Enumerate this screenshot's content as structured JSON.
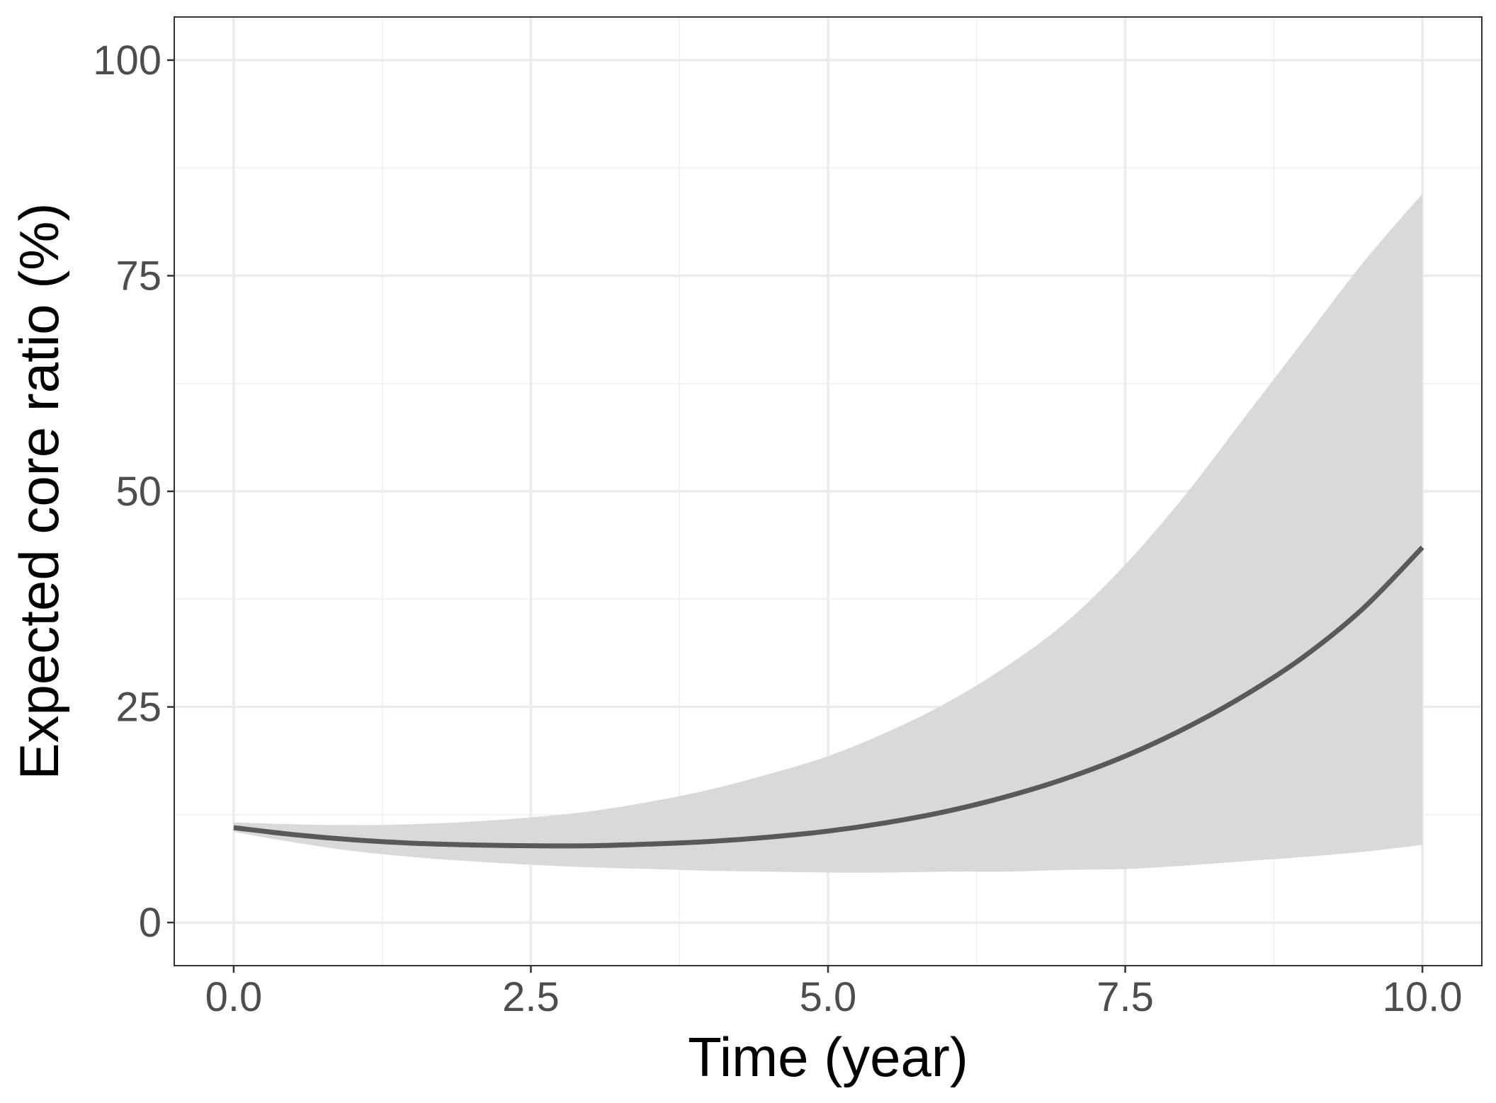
{
  "chart_data": {
    "type": "line",
    "title": "",
    "xlabel": "Time (year)",
    "ylabel": "Expected core ratio (%)",
    "xlim": [
      -0.5,
      10.5
    ],
    "ylim": [
      -5,
      105
    ],
    "x_ticks": [
      0,
      2.5,
      5,
      7.5,
      10
    ],
    "x_tick_labels": [
      "0.0",
      "2.5",
      "5.0",
      "7.5",
      "10.0"
    ],
    "y_ticks": [
      0,
      25,
      50,
      75,
      100
    ],
    "y_tick_labels": [
      "0",
      "25",
      "50",
      "75",
      "100"
    ],
    "x_minor_ticks": [
      1.25,
      3.75,
      6.25,
      8.75
    ],
    "y_minor_ticks": [
      12.5,
      37.5,
      62.5,
      87.5
    ],
    "grid": true,
    "legend": "none",
    "series": [
      {
        "x": [
          0,
          0.5,
          1,
          1.5,
          2,
          2.5,
          3,
          3.5,
          4,
          4.5,
          5,
          5.5,
          6,
          6.5,
          7,
          7.5,
          8,
          8.5,
          9,
          9.5,
          10
        ],
        "values": [
          11,
          10.2,
          9.6,
          9.2,
          9.0,
          8.9,
          8.9,
          9.1,
          9.4,
          9.9,
          10.6,
          11.6,
          12.9,
          14.6,
          16.7,
          19.3,
          22.5,
          26.3,
          30.8,
          36.4,
          43.5
        ],
        "lower": [
          10.5,
          9.3,
          8.3,
          7.6,
          7.1,
          6.7,
          6.4,
          6.2,
          6.0,
          5.9,
          5.8,
          5.8,
          5.9,
          5.9,
          6.1,
          6.2,
          6.6,
          7.1,
          7.6,
          8.2,
          9.0
        ],
        "upper": [
          11.6,
          11.4,
          11.3,
          11.4,
          11.7,
          12.2,
          12.9,
          14.0,
          15.4,
          17.2,
          19.3,
          22.1,
          25.5,
          29.7,
          34.8,
          41.5,
          49.5,
          58.5,
          67.5,
          76.5,
          84.5
        ]
      }
    ]
  },
  "colors": {
    "line": "#595959",
    "ribbon": "#d9d9d9",
    "grid_major": "#ebebeb",
    "grid_minor": "#f2f2f2",
    "panel_border": "#333333",
    "tick_text": "#4d4d4d",
    "axis_title": "#000000"
  }
}
